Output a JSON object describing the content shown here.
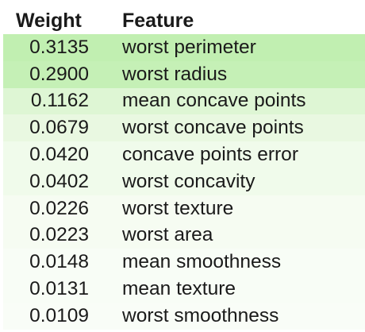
{
  "table": {
    "headers": {
      "weight": "Weight",
      "feature": "Feature"
    },
    "rows": [
      {
        "weight": "0.3135",
        "feature": "worst perimeter",
        "color": "#c1efb1"
      },
      {
        "weight": "0.2900",
        "feature": "worst radius",
        "color": "#c5f0b6"
      },
      {
        "weight": "0.1162",
        "feature": "mean concave points",
        "color": "#def6d4"
      },
      {
        "weight": "0.0679",
        "feature": "worst concave points",
        "color": "#e9f8e1"
      },
      {
        "weight": "0.0420",
        "feature": "concave points error",
        "color": "#f0fbeb"
      },
      {
        "weight": "0.0402",
        "feature": "worst concavity",
        "color": "#f0fbeb"
      },
      {
        "weight": "0.0226",
        "feature": "worst texture",
        "color": "#f6fcf2"
      },
      {
        "weight": "0.0223",
        "feature": "worst area",
        "color": "#f6fcf2"
      },
      {
        "weight": "0.0148",
        "feature": "mean smoothness",
        "color": "#f8fdf6"
      },
      {
        "weight": "0.0131",
        "feature": "mean texture",
        "color": "#f8fdf6"
      },
      {
        "weight": "0.0109",
        "feature": "worst smoothness",
        "color": "#f9fdf7"
      }
    ]
  }
}
